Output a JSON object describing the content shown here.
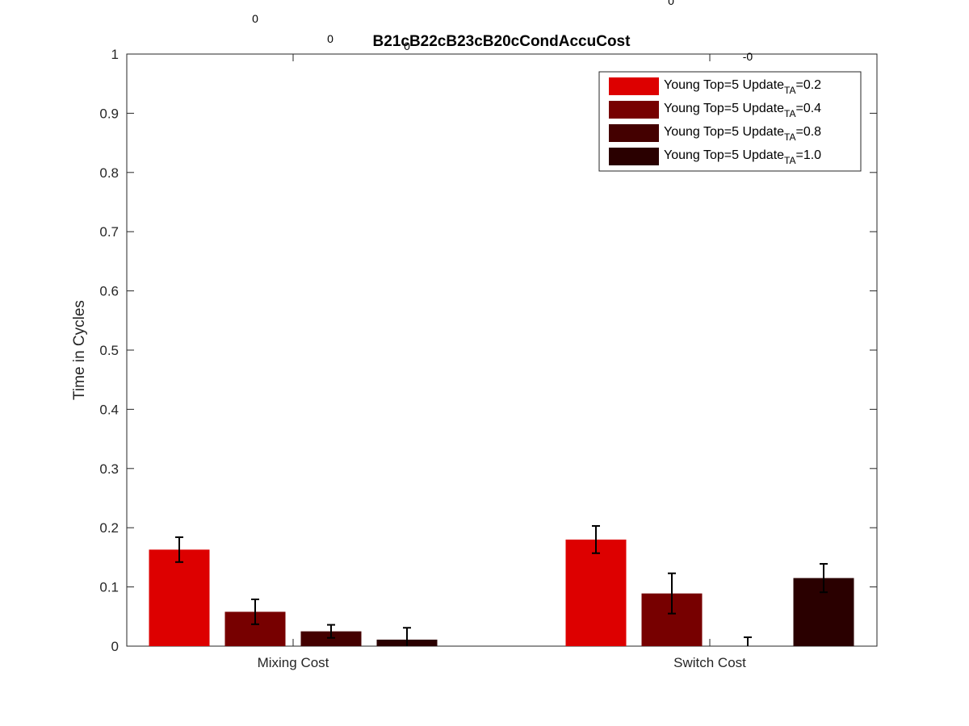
{
  "chart_data": {
    "type": "bar",
    "title": "B21cB22cB23cB20cCondAccuCost",
    "xlabel": "",
    "ylabel": "Time in Cycles",
    "ylim": [
      0,
      1
    ],
    "yticks": [
      "0",
      "0.1",
      "0.2",
      "0.3",
      "0.4",
      "0.5",
      "0.6",
      "0.7",
      "0.8",
      "0.9",
      "1"
    ],
    "categories": [
      "Mixing Cost",
      "Switch Cost"
    ],
    "legend_position": "top-right",
    "series": [
      {
        "name": "Young Top=5 Update",
        "subscript": "TA",
        "suffix": "=0.2",
        "color": "#dd0000",
        "values": [
          0.163,
          0.18
        ],
        "errors": [
          0.021,
          0.023
        ],
        "labels": [
          "0",
          "0"
        ]
      },
      {
        "name": "Young Top=5 Update",
        "subscript": "TA",
        "suffix": "=0.4",
        "color": "#770000",
        "values": [
          0.058,
          0.089
        ],
        "errors": [
          0.021,
          0.034
        ],
        "labels": [
          "0",
          "-0"
        ]
      },
      {
        "name": "Young Top=5 Update",
        "subscript": "TA",
        "suffix": "=0.8",
        "color": "#440000",
        "values": [
          0.025,
          0.0
        ],
        "errors": [
          0.011,
          0.015
        ],
        "labels": [
          "0",
          "0"
        ]
      },
      {
        "name": "Young Top=5 Update",
        "subscript": "TA",
        "suffix": "=1.0",
        "color": "#2a0000",
        "values": [
          0.011,
          0.115
        ],
        "errors": [
          0.02,
          0.024
        ],
        "labels": [
          "0",
          "0"
        ]
      }
    ]
  }
}
